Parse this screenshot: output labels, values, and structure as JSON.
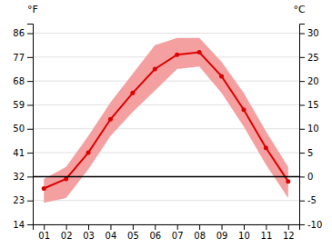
{
  "chart_data": {
    "type": "line",
    "ylabel": "°C",
    "y2label": "°F",
    "x": [
      1,
      2,
      3,
      4,
      5,
      6,
      7,
      8,
      9,
      10,
      11,
      12
    ],
    "xlim": [
      0.5,
      12.5
    ],
    "xticks": [
      {
        "value": 1,
        "label": "01"
      },
      {
        "value": 2,
        "label": "02"
      },
      {
        "value": 3,
        "label": "03"
      },
      {
        "value": 4,
        "label": "04"
      },
      {
        "value": 5,
        "label": "05"
      },
      {
        "value": 6,
        "label": "06"
      },
      {
        "value": 7,
        "label": "07"
      },
      {
        "value": 8,
        "label": "08"
      },
      {
        "value": 9,
        "label": "09"
      },
      {
        "value": 10,
        "label": "10"
      },
      {
        "value": 11,
        "label": "11"
      },
      {
        "value": 12,
        "label": "12"
      }
    ],
    "series": [
      {
        "type": "area",
        "color": "#f5a0a0",
        "low": [
          -5.5,
          -4.5,
          1.5,
          8.5,
          13.5,
          18.0,
          22.5,
          23.0,
          17.5,
          10.5,
          2.5,
          -4.5
        ],
        "high": [
          -0.5,
          2.0,
          8.5,
          15.5,
          21.5,
          27.5,
          29.0,
          29.0,
          24.0,
          17.5,
          9.5,
          2.0
        ]
      },
      {
        "type": "line",
        "color": "#dd0000",
        "marker": "circle",
        "values": [
          -2.5,
          -0.5,
          5.0,
          12.0,
          17.5,
          22.5,
          25.5,
          26.0,
          21.0,
          14.0,
          6.0,
          -1.0
        ]
      }
    ],
    "hlines": [
      0
    ],
    "ylim": [
      -10,
      32
    ],
    "yticks": [
      -10,
      -5,
      0,
      5,
      10,
      15,
      20,
      25,
      30
    ],
    "y2lim": [
      14,
      89.6
    ],
    "y2ticks": [
      14,
      23,
      32,
      41,
      50,
      59,
      68,
      77,
      86
    ],
    "grid": true
  }
}
